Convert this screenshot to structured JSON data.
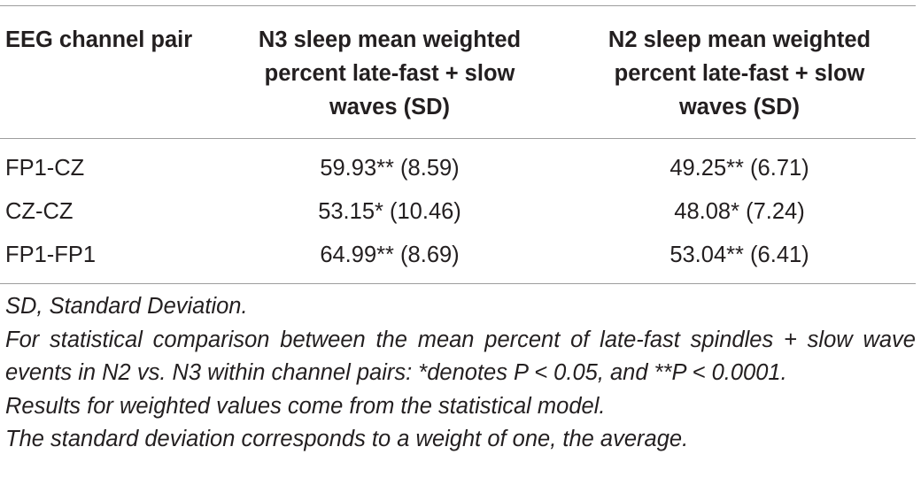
{
  "table": {
    "headers": [
      "EEG channel pair",
      "N3 sleep mean weighted percent late-fast + slow waves (SD)",
      "N2 sleep mean weighted percent late-fast + slow waves (SD)"
    ],
    "rows": [
      {
        "pair": "FP1-CZ",
        "n3": "59.93** (8.59)",
        "n2": "49.25** (6.71)"
      },
      {
        "pair": "CZ-CZ",
        "n3": "53.15* (10.46)",
        "n2": "48.08* (7.24)"
      },
      {
        "pair": "FP1-FP1",
        "n3": "64.99** (8.69)",
        "n2": "53.04** (6.41)"
      }
    ]
  },
  "footnotes": [
    "SD, Standard Deviation.",
    "For statistical comparison between the mean percent of late-fast spindles + slow wave events in N2 vs. N3 within channel pairs: *denotes P < 0.05, and **P < 0.0001.",
    "Results for weighted values come from the statistical model.",
    "The standard deviation corresponds to a weight of one, the average."
  ]
}
